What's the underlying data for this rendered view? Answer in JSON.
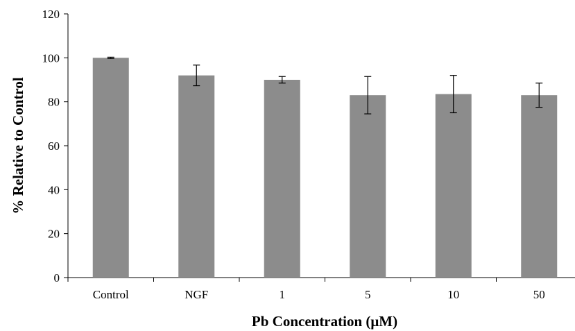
{
  "chart_data": {
    "type": "bar",
    "title": "",
    "xlabel": "Pb Concentration (μM)",
    "ylabel": "% Relative to Control",
    "categories": [
      "Control",
      "NGF",
      "1",
      "5",
      "10",
      "50"
    ],
    "values": [
      100,
      92,
      90,
      83,
      83.5,
      83
    ],
    "error": [
      0.3,
      4.7,
      1.5,
      8.5,
      8.5,
      5.5
    ],
    "ylim": [
      0,
      120
    ],
    "yticks": [
      0,
      20,
      40,
      60,
      80,
      100,
      120
    ],
    "grid": false,
    "legend": "none",
    "bar_color": "#8c8c8c"
  }
}
